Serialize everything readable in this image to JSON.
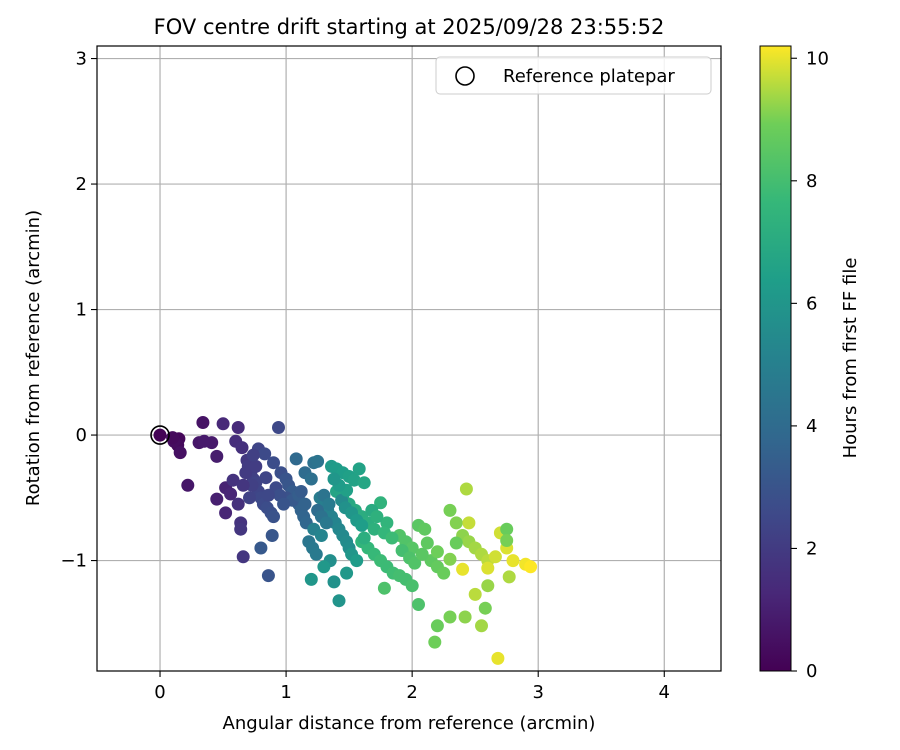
{
  "chart_data": {
    "type": "scatter",
    "title": "FOV centre drift starting at 2025/09/28 23:55:52",
    "xlabel": "Angular distance from reference (arcmin)",
    "ylabel": "Rotation from reference (arcmin)",
    "colorbar_label": "Hours from first FF file",
    "xlim": [
      -0.5,
      4.45
    ],
    "ylim": [
      -1.88,
      3.1
    ],
    "clim": [
      0,
      10.2
    ],
    "xticks": [
      0,
      1,
      2,
      3,
      4
    ],
    "xtick_labels": [
      "0",
      "1",
      "2",
      "3",
      "4"
    ],
    "yticks": [
      -1,
      0,
      1,
      2,
      3
    ],
    "ytick_labels": [
      "−1",
      "0",
      "1",
      "2",
      "3"
    ],
    "cticks": [
      0,
      2,
      4,
      6,
      8,
      10
    ],
    "ctick_labels": [
      "0",
      "2",
      "4",
      "6",
      "8",
      "10"
    ],
    "grid": true,
    "legend": {
      "position": "top-right",
      "label": "Reference platepar"
    },
    "reference_point": {
      "x": 0,
      "y": 0
    },
    "points": [
      [
        0.0,
        0.0,
        0.05
      ],
      [
        0.15,
        -0.03,
        0.2
      ],
      [
        0.14,
        -0.08,
        0.3
      ],
      [
        0.11,
        -0.05,
        0.4
      ],
      [
        0.16,
        -0.14,
        0.5
      ],
      [
        0.34,
        0.1,
        0.6
      ],
      [
        0.31,
        -0.06,
        0.7
      ],
      [
        0.41,
        -0.06,
        0.8
      ],
      [
        0.45,
        -0.17,
        0.9
      ],
      [
        0.22,
        -0.4,
        0.7
      ],
      [
        0.45,
        -0.51,
        1.0
      ],
      [
        0.52,
        -0.42,
        1.1
      ],
      [
        0.56,
        -0.47,
        1.2
      ],
      [
        0.5,
        0.09,
        1.3
      ],
      [
        0.62,
        0.06,
        1.4
      ],
      [
        0.6,
        -0.05,
        1.5
      ],
      [
        0.65,
        -0.1,
        1.6
      ],
      [
        0.62,
        -0.55,
        1.6
      ],
      [
        0.64,
        -0.7,
        1.7
      ],
      [
        0.64,
        -0.75,
        1.8
      ],
      [
        0.66,
        -0.97,
        1.8
      ],
      [
        0.69,
        -0.2,
        1.9
      ],
      [
        0.7,
        -0.25,
        2.0
      ],
      [
        0.72,
        -0.3,
        2.1
      ],
      [
        0.74,
        -0.35,
        2.2
      ],
      [
        0.76,
        -0.38,
        2.3
      ],
      [
        0.78,
        -0.45,
        2.4
      ],
      [
        0.8,
        -0.5,
        2.5
      ],
      [
        0.82,
        -0.55,
        2.6
      ],
      [
        0.85,
        -0.58,
        2.7
      ],
      [
        0.88,
        -0.62,
        2.8
      ],
      [
        0.9,
        -0.65,
        2.9
      ],
      [
        0.86,
        -1.12,
        3.0
      ],
      [
        0.89,
        -0.8,
        3.1
      ],
      [
        0.8,
        -0.9,
        3.2
      ],
      [
        0.94,
        0.06,
        2.5
      ],
      [
        0.78,
        -0.11,
        2.4
      ],
      [
        0.83,
        -0.15,
        2.6
      ],
      [
        0.9,
        -0.22,
        2.7
      ],
      [
        0.96,
        -0.3,
        2.8
      ],
      [
        1.0,
        -0.35,
        3.0
      ],
      [
        1.02,
        -0.4,
        3.1
      ],
      [
        1.05,
        -0.45,
        3.3
      ],
      [
        1.08,
        -0.5,
        3.4
      ],
      [
        1.1,
        -0.55,
        3.5
      ],
      [
        1.12,
        -0.6,
        3.6
      ],
      [
        1.14,
        -0.65,
        3.7
      ],
      [
        1.16,
        -0.7,
        3.8
      ],
      [
        1.08,
        -0.19,
        3.9
      ],
      [
        1.15,
        -0.3,
        4.0
      ],
      [
        1.2,
        -0.35,
        4.2
      ],
      [
        1.22,
        -0.22,
        4.3
      ],
      [
        1.25,
        -0.21,
        4.4
      ],
      [
        1.18,
        -0.85,
        4.5
      ],
      [
        1.21,
        -0.9,
        4.6
      ],
      [
        1.24,
        -0.95,
        4.7
      ],
      [
        1.27,
        -0.5,
        4.8
      ],
      [
        1.3,
        -0.55,
        4.9
      ],
      [
        1.33,
        -0.6,
        5.0
      ],
      [
        1.36,
        -0.65,
        5.1
      ],
      [
        1.39,
        -0.7,
        5.2
      ],
      [
        1.42,
        -0.75,
        5.3
      ],
      [
        1.45,
        -0.8,
        5.4
      ],
      [
        1.48,
        -0.85,
        5.5
      ],
      [
        1.5,
        -0.9,
        5.6
      ],
      [
        1.35,
        -1.0,
        5.7
      ],
      [
        1.38,
        -1.17,
        5.8
      ],
      [
        1.42,
        -1.32,
        5.9
      ],
      [
        1.2,
        -1.15,
        6.0
      ],
      [
        1.3,
        -1.05,
        6.1
      ],
      [
        1.36,
        -0.25,
        6.2
      ],
      [
        1.4,
        -0.27,
        6.3
      ],
      [
        1.45,
        -0.3,
        6.4
      ],
      [
        1.5,
        -0.33,
        6.5
      ],
      [
        1.54,
        -0.36,
        6.6
      ],
      [
        1.4,
        -0.45,
        6.7
      ],
      [
        1.45,
        -0.5,
        6.8
      ],
      [
        1.5,
        -0.55,
        6.9
      ],
      [
        1.55,
        -0.6,
        7.0
      ],
      [
        1.6,
        -0.65,
        7.1
      ],
      [
        1.65,
        -0.7,
        7.2
      ],
      [
        1.7,
        -0.75,
        7.3
      ],
      [
        1.75,
        -0.54,
        7.4
      ],
      [
        1.8,
        -0.7,
        7.5
      ],
      [
        1.6,
        -0.85,
        7.5
      ],
      [
        1.65,
        -0.9,
        7.6
      ],
      [
        1.7,
        -0.95,
        7.7
      ],
      [
        1.75,
        -1.0,
        7.8
      ],
      [
        1.8,
        -1.05,
        7.8
      ],
      [
        1.85,
        -1.1,
        7.9
      ],
      [
        1.9,
        -1.12,
        8.0
      ],
      [
        1.95,
        -1.15,
        8.0
      ],
      [
        2.0,
        -1.2,
        8.1
      ],
      [
        2.05,
        -1.35,
        8.2
      ],
      [
        1.78,
        -1.22,
        8.2
      ],
      [
        1.9,
        -0.8,
        8.3
      ],
      [
        1.95,
        -0.85,
        8.3
      ],
      [
        2.0,
        -0.9,
        8.4
      ],
      [
        2.05,
        -0.72,
        8.5
      ],
      [
        2.1,
        -0.75,
        8.6
      ],
      [
        2.15,
        -1.0,
        8.6
      ],
      [
        2.2,
        -1.05,
        8.7
      ],
      [
        2.25,
        -1.1,
        8.8
      ],
      [
        2.2,
        -1.52,
        8.8
      ],
      [
        2.18,
        -1.65,
        8.9
      ],
      [
        2.3,
        -0.6,
        9.0
      ],
      [
        2.35,
        -0.7,
        9.1
      ],
      [
        2.4,
        -0.8,
        9.2
      ],
      [
        2.45,
        -0.85,
        9.3
      ],
      [
        2.5,
        -0.9,
        9.4
      ],
      [
        2.55,
        -0.95,
        9.5
      ],
      [
        2.6,
        -1.0,
        9.6
      ],
      [
        2.3,
        -1.45,
        9.0
      ],
      [
        2.42,
        -1.45,
        9.2
      ],
      [
        2.55,
        -1.52,
        9.4
      ],
      [
        2.58,
        -1.38,
        9.0
      ],
      [
        2.6,
        -1.2,
        9.3
      ],
      [
        2.5,
        -1.27,
        9.6
      ],
      [
        2.43,
        -0.43,
        9.5
      ],
      [
        2.45,
        -0.7,
        9.7
      ],
      [
        2.7,
        -0.78,
        9.8
      ],
      [
        2.75,
        -0.9,
        9.9
      ],
      [
        2.8,
        -1.0,
        10.0
      ],
      [
        2.9,
        -1.03,
        10.1
      ],
      [
        2.94,
        -1.05,
        10.2
      ],
      [
        2.68,
        -1.78,
        10.0
      ],
      [
        2.75,
        -0.75,
        8.8
      ],
      [
        2.75,
        -0.84,
        9.0
      ],
      [
        2.77,
        -1.13,
        9.5
      ],
      [
        2.66,
        -0.97,
        9.8
      ],
      [
        2.4,
        -1.07,
        10.0
      ],
      [
        2.6,
        -1.06,
        9.9
      ],
      [
        2.3,
        -0.99,
        9.1
      ],
      [
        2.2,
        -0.93,
        8.9
      ],
      [
        2.35,
        -0.86,
        8.8
      ],
      [
        1.0,
        -0.5,
        2.9
      ],
      [
        1.05,
        -0.52,
        3.2
      ],
      [
        1.1,
        -0.48,
        3.4
      ],
      [
        1.15,
        -0.55,
        3.6
      ],
      [
        1.12,
        -0.45,
        3.3
      ],
      [
        1.25,
        -0.6,
        4.0
      ],
      [
        1.28,
        -0.65,
        4.3
      ],
      [
        1.32,
        -0.7,
        4.6
      ],
      [
        1.3,
        -0.48,
        4.4
      ],
      [
        1.34,
        -0.55,
        4.7
      ],
      [
        1.44,
        -0.52,
        5.5
      ],
      [
        1.47,
        -0.58,
        5.8
      ],
      [
        1.52,
        -0.62,
        6.0
      ],
      [
        1.56,
        -0.68,
        6.2
      ],
      [
        1.6,
        -0.72,
        6.4
      ],
      [
        1.52,
        -0.95,
        6.0
      ],
      [
        1.56,
        -1.0,
        6.3
      ],
      [
        1.48,
        -1.1,
        6.1
      ],
      [
        1.22,
        -0.75,
        5.0
      ],
      [
        1.28,
        -0.8,
        5.2
      ],
      [
        0.58,
        -0.36,
        1.7
      ],
      [
        0.68,
        -0.3,
        2.0
      ],
      [
        0.73,
        -0.4,
        2.2
      ],
      [
        0.71,
        -0.5,
        2.3
      ],
      [
        0.76,
        -0.25,
        2.1
      ],
      [
        0.84,
        -0.34,
        2.4
      ],
      [
        0.92,
        -0.42,
        2.6
      ],
      [
        0.95,
        -0.48,
        2.8
      ],
      [
        0.98,
        -0.55,
        3.0
      ],
      [
        0.86,
        -0.48,
        2.5
      ],
      [
        1.62,
        -0.82,
        7.2
      ],
      [
        1.68,
        -0.6,
        7.0
      ],
      [
        1.72,
        -0.65,
        7.3
      ],
      [
        1.78,
        -0.78,
        7.6
      ],
      [
        1.84,
        -0.82,
        7.8
      ],
      [
        1.92,
        -0.92,
        8.0
      ],
      [
        1.98,
        -0.98,
        8.2
      ],
      [
        2.02,
        -1.02,
        8.3
      ],
      [
        2.08,
        -0.95,
        8.5
      ],
      [
        2.12,
        -0.86,
        8.6
      ],
      [
        0.35,
        -0.05,
        0.8
      ],
      [
        0.1,
        -0.02,
        0.3
      ],
      [
        0.52,
        -0.62,
        1.2
      ],
      [
        0.66,
        -0.4,
        1.8
      ],
      [
        0.74,
        -0.16,
        2.2
      ],
      [
        1.58,
        -0.27,
        6.6
      ],
      [
        1.62,
        -0.38,
        6.8
      ],
      [
        1.48,
        -0.44,
        6.5
      ],
      [
        1.42,
        -0.4,
        6.3
      ],
      [
        1.38,
        -0.35,
        6.0
      ]
    ]
  }
}
